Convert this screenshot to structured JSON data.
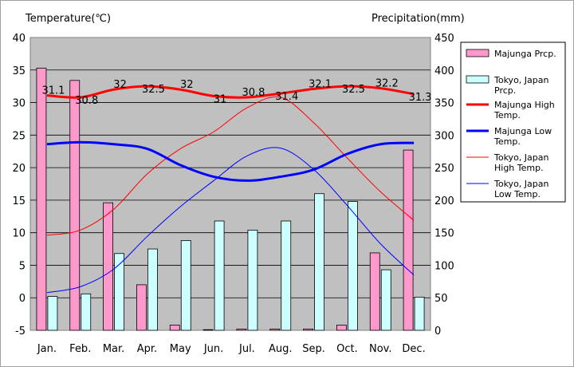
{
  "chart_data": {
    "type": "bar",
    "y_left_label": "Temperature(℃)",
    "y_right_label": "Precipitation(mm)",
    "categories": [
      "Jan.",
      "Feb.",
      "Mar.",
      "Apr.",
      "May",
      "Jun.",
      "Jul.",
      "Aug.",
      "Sep.",
      "Oct.",
      "Nov.",
      "Dec."
    ],
    "ylim_left": [
      -5,
      40
    ],
    "ylim_right": [
      0,
      450
    ],
    "yticks_left": [
      -5,
      0,
      5,
      10,
      15,
      20,
      25,
      30,
      35,
      40
    ],
    "yticks_right": [
      0,
      50,
      100,
      150,
      200,
      250,
      300,
      350,
      400,
      450
    ],
    "grid": true,
    "legend_position": "right",
    "bars": [
      {
        "name": "Majunga Prcp.",
        "axis": "right",
        "color": "#ff99cc",
        "values": [
          403,
          384,
          196,
          70,
          8,
          1,
          2,
          2,
          2,
          8,
          119,
          277
        ]
      },
      {
        "name": "Tokyo, Japan Prcp.",
        "axis": "right",
        "color": "#ccffff",
        "values": [
          52,
          56,
          118,
          125,
          138,
          168,
          154,
          168,
          210,
          198,
          93,
          51
        ]
      }
    ],
    "lines": [
      {
        "name": "Majunga High Temp.",
        "axis": "left",
        "color": "#ff0000",
        "width": 3,
        "values": [
          31.1,
          30.8,
          32,
          32.5,
          32,
          31,
          30.8,
          31.4,
          32.1,
          32.5,
          32.2,
          31.3
        ],
        "labels": [
          "31.1",
          "30.8",
          "32",
          "32.5",
          "32",
          "31",
          "30.8",
          "31.4",
          "32.1",
          "32.5",
          "32.2",
          "31.3"
        ]
      },
      {
        "name": "Majunga Low Temp.",
        "axis": "left",
        "color": "#0000ff",
        "width": 3,
        "values": [
          23.6,
          23.9,
          23.6,
          22.9,
          20.4,
          18.6,
          18.0,
          18.6,
          19.7,
          22.1,
          23.6,
          23.8
        ]
      },
      {
        "name": "Tokyo, Japan High Temp.",
        "axis": "left",
        "color": "#ff0000",
        "width": 1,
        "values": [
          9.6,
          10.4,
          13.6,
          19.0,
          22.9,
          25.5,
          29.2,
          30.8,
          26.9,
          21.5,
          16.3,
          11.9
        ]
      },
      {
        "name": "Tokyo, Japan Low Temp.",
        "axis": "left",
        "color": "#0000ff",
        "width": 1,
        "values": [
          0.8,
          1.7,
          4.4,
          9.4,
          14.0,
          18.0,
          21.8,
          23.0,
          19.7,
          14.2,
          8.3,
          3.5
        ]
      }
    ]
  }
}
